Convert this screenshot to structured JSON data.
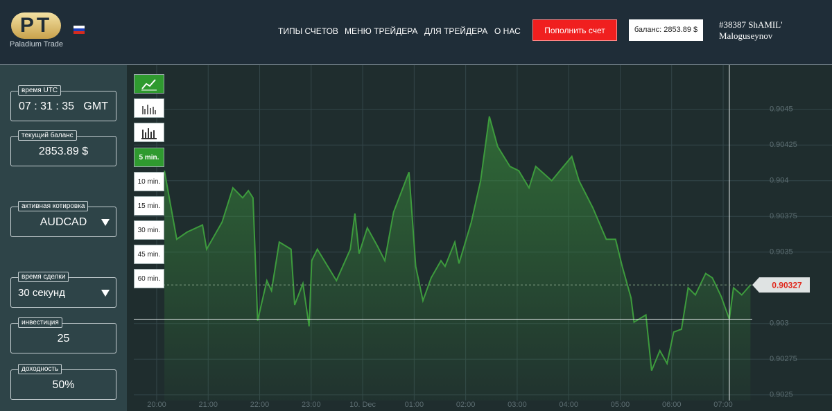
{
  "header": {
    "logo_text": "PT",
    "brand": "Paladium Trade",
    "nav": [
      "ТИПЫ СЧЕТОВ",
      "МЕНЮ ТРЕЙДЕРА",
      "ДЛЯ ТРЕЙДЕРА",
      "О НАС"
    ],
    "deposit_button": "Пополнить счет",
    "balance": "баланс: 2853.89 $",
    "user": "#38387 ShAMIL' Maloguseynov"
  },
  "sidebar": [
    {
      "label": "время UTC",
      "value": "07 : 31 : 35   GMT"
    },
    {
      "label": "текущий баланс",
      "value": "2853.89 $"
    },
    {
      "label": "активная котировка",
      "value": "AUDCAD"
    },
    {
      "label": "время сделки",
      "value": "30 секунд"
    },
    {
      "label": "инвестиция",
      "value": "25"
    },
    {
      "label": "доходность",
      "value": "50%"
    }
  ],
  "timeframes": [
    "5 min.",
    "10 min.",
    "15 min.",
    "30 min.",
    "45 min.",
    "60 min."
  ],
  "chart_data": {
    "type": "line",
    "color": "#3d9b3d",
    "grid": true,
    "x": [
      20.15,
      20.39,
      20.59,
      20.89,
      20.97,
      21.27,
      21.48,
      21.67,
      21.78,
      21.87,
      21.96,
      22.14,
      22.23,
      22.38,
      22.61,
      22.68,
      22.84,
      22.96,
      23.01,
      23.12,
      23.49,
      23.76,
      23.85,
      23.93,
      24.09,
      24.29,
      24.43,
      24.6,
      24.9,
      25.03,
      25.17,
      25.33,
      25.52,
      25.6,
      25.79,
      25.87,
      26.11,
      26.29,
      26.46,
      26.62,
      26.86,
      27.03,
      27.23,
      27.36,
      27.67,
      27.83,
      28.06,
      28.2,
      28.47,
      28.73,
      28.91,
      29.04,
      29.21,
      29.27,
      29.5,
      29.61,
      29.77,
      29.91,
      30.04,
      30.19,
      30.32,
      30.46,
      30.66,
      30.79,
      30.96,
      31.12,
      31.2,
      31.36,
      31.53
    ],
    "values": [
      0.90407,
      0.90359,
      0.90364,
      0.90369,
      0.90352,
      0.90371,
      0.90395,
      0.90388,
      0.90393,
      0.90388,
      0.90302,
      0.9033,
      0.90323,
      0.90357,
      0.90352,
      0.90313,
      0.90328,
      0.90298,
      0.90344,
      0.90352,
      0.9033,
      0.90352,
      0.90377,
      0.90349,
      0.90367,
      0.90354,
      0.90344,
      0.90378,
      0.90406,
      0.9034,
      0.90316,
      0.90332,
      0.90344,
      0.9034,
      0.90357,
      0.90342,
      0.90371,
      0.904,
      0.90445,
      0.90424,
      0.9041,
      0.90407,
      0.90395,
      0.9041,
      0.904,
      0.90407,
      0.90417,
      0.904,
      0.90381,
      0.90359,
      0.90359,
      0.9034,
      0.90318,
      0.90301,
      0.90306,
      0.90267,
      0.90281,
      0.90272,
      0.90294,
      0.90296,
      0.90325,
      0.9032,
      0.90335,
      0.90332,
      0.90319,
      0.90303,
      0.90325,
      0.9032,
      0.90327
    ],
    "xlim": [
      19.556,
      31.565
    ],
    "ylim": [
      0.90246,
      0.90478
    ],
    "xticks": [
      {
        "value": 20,
        "label": "20:00"
      },
      {
        "value": 21,
        "label": "21:00"
      },
      {
        "value": 22,
        "label": "22:00"
      },
      {
        "value": 23,
        "label": "23:00"
      },
      {
        "value": 24,
        "label": "10. Dec"
      },
      {
        "value": 25,
        "label": "01:00"
      },
      {
        "value": 26,
        "label": "02:00"
      },
      {
        "value": 27,
        "label": "03:00"
      },
      {
        "value": 28,
        "label": "04:00"
      },
      {
        "value": 29,
        "label": "05:00"
      },
      {
        "value": 30,
        "label": "06:00"
      },
      {
        "value": 31,
        "label": "07:00"
      }
    ],
    "yticks": [
      0.9045,
      0.90425,
      0.904,
      0.90375,
      0.9035,
      0.903,
      0.90275,
      0.9025
    ],
    "current_price": {
      "value": 0.90327,
      "label": "0.90327"
    },
    "crosshair": {
      "x": 31.12,
      "y": 0.90303
    }
  }
}
